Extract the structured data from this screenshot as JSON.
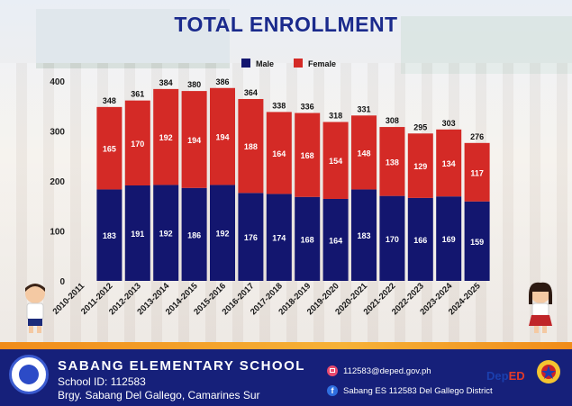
{
  "colors": {
    "male": "#13166f",
    "female": "#d42a26",
    "title": "#1a2a8c"
  },
  "chart_data": {
    "type": "bar",
    "stacked": true,
    "title": "TOTAL ENROLLMENT",
    "categories": [
      "2010-2011",
      "2011-2012",
      "2012-2013",
      "2013-2014",
      "2014-2015",
      "2015-2016",
      "2016-2017",
      "2017-2018",
      "2018-2019",
      "2019-2020",
      "2020-2021",
      "2021-2022",
      "2022-2023",
      "2023-2024",
      "2024-2025"
    ],
    "series": [
      {
        "name": "Male",
        "values": [
          null,
          183,
          191,
          192,
          186,
          192,
          176,
          174,
          168,
          164,
          183,
          170,
          166,
          169,
          159
        ]
      },
      {
        "name": "Female",
        "values": [
          null,
          165,
          170,
          192,
          194,
          194,
          188,
          164,
          168,
          154,
          148,
          138,
          129,
          134,
          117
        ]
      }
    ],
    "totals": [
      null,
      348,
      361,
      384,
      380,
      386,
      364,
      338,
      336,
      318,
      331,
      308,
      295,
      303,
      276
    ],
    "yticks": [
      0,
      100,
      200,
      300,
      400
    ],
    "ylim": [
      0,
      400
    ],
    "legend": "top-center"
  },
  "footer": {
    "school_name": "SABANG ELEMENTARY SCHOOL",
    "school_id": "School ID: 112583",
    "address": "Brgy. Sabang Del Gallego, Camarines Sur",
    "email": "112583@deped.gov.ph",
    "facebook": "Sabang ES 112583 Del Gallego District"
  },
  "logos": {
    "deped_a": "Dep",
    "deped_b": "ED"
  }
}
